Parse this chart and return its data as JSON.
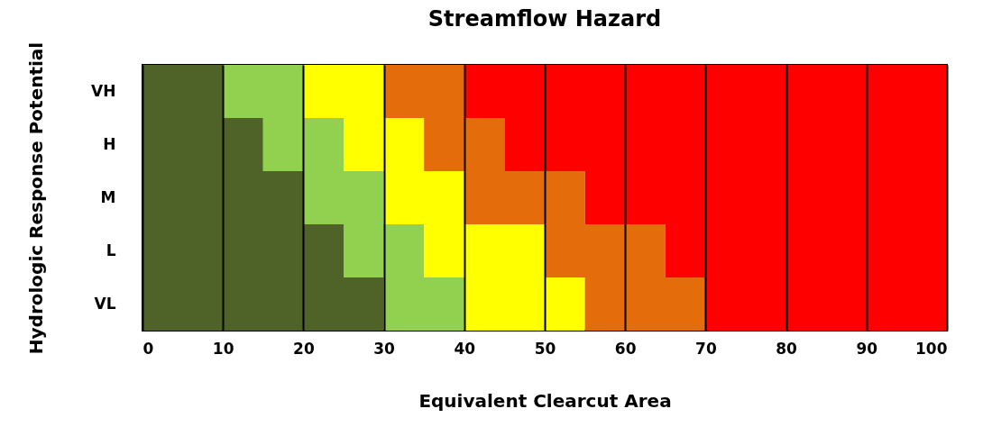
{
  "chart_data": {
    "type": "bar",
    "orientation": "horizontal",
    "stacked": true,
    "title": "Streamflow Hazard",
    "xlabel": "Equivalent Clearcut Area",
    "ylabel": "Hydrologic Response Potential",
    "categories": [
      "VH",
      "H",
      "M",
      "L",
      "VL"
    ],
    "series": [
      {
        "color": "#4f6228",
        "values": [
          10,
          15,
          20,
          25,
          30
        ]
      },
      {
        "color": "#92d050",
        "values": [
          10,
          10,
          10,
          10,
          10
        ]
      },
      {
        "color": "#ffff00",
        "values": [
          10,
          10,
          10,
          15,
          15
        ]
      },
      {
        "color": "#e46c0a",
        "values": [
          10,
          10,
          15,
          15,
          15
        ]
      },
      {
        "color": "#ff0000",
        "values": [
          60,
          55,
          45,
          35,
          30
        ]
      }
    ],
    "xlim": [
      0,
      100
    ],
    "xticks": [
      0,
      10,
      20,
      30,
      40,
      50,
      60,
      70,
      80,
      90,
      100
    ],
    "grid": "x",
    "legend": false
  }
}
